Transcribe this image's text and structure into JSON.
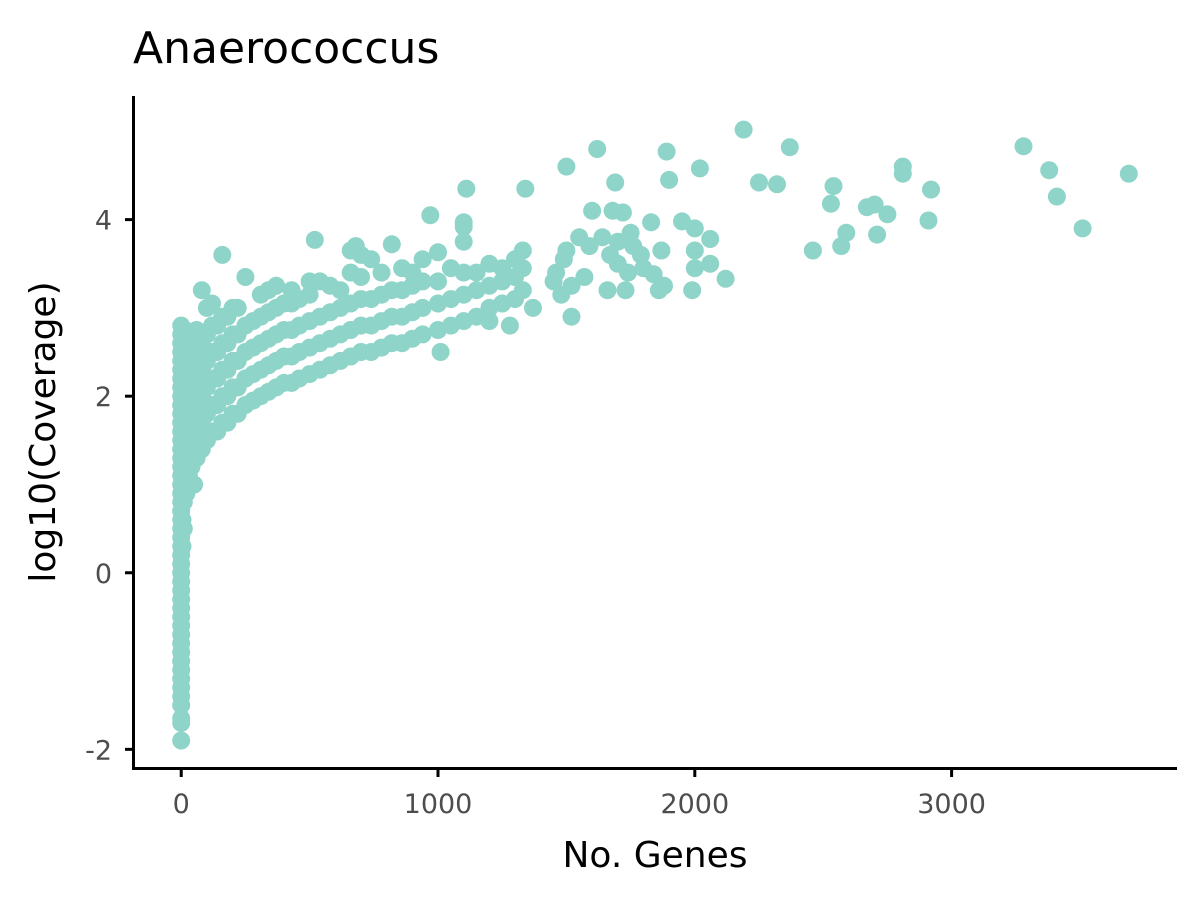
{
  "chart_data": {
    "type": "scatter",
    "title": "Anaerococcus",
    "xlabel": "No. Genes",
    "ylabel": "log10(Coverage)",
    "xlim": [
      -180,
      3870
    ],
    "ylim": [
      -2.2,
      5.4
    ],
    "x_ticks": [
      0,
      1000,
      2000,
      3000
    ],
    "x_tick_labels": [
      "0",
      "1000",
      "2000",
      "3000"
    ],
    "y_ticks": [
      -2,
      0,
      2,
      4
    ],
    "y_tick_labels": [
      "-2",
      "0",
      "2",
      "4"
    ],
    "grid": false,
    "legend": "none",
    "point_color": "#8fd4c8",
    "points": [
      [
        0,
        -1.9
      ],
      [
        0,
        -1.7
      ],
      [
        0,
        -1.65
      ],
      [
        0,
        -1.5
      ],
      [
        0,
        -1.4
      ],
      [
        0,
        -1.3
      ],
      [
        0,
        -1.2
      ],
      [
        0,
        -1.1
      ],
      [
        0,
        -1.0
      ],
      [
        0,
        -0.9
      ],
      [
        0,
        -0.8
      ],
      [
        0,
        -0.7
      ],
      [
        0,
        -0.6
      ],
      [
        0,
        -0.5
      ],
      [
        0,
        -0.4
      ],
      [
        0,
        -0.3
      ],
      [
        0,
        -0.2
      ],
      [
        0,
        -0.1
      ],
      [
        0,
        0.0
      ],
      [
        0,
        0.1
      ],
      [
        0,
        0.2
      ],
      [
        0,
        0.3
      ],
      [
        0,
        0.4
      ],
      [
        0,
        0.5
      ],
      [
        0,
        0.6
      ],
      [
        0,
        0.7
      ],
      [
        0,
        0.8
      ],
      [
        0,
        0.9
      ],
      [
        0,
        1.0
      ],
      [
        0,
        1.1
      ],
      [
        0,
        1.2
      ],
      [
        0,
        1.3
      ],
      [
        0,
        1.4
      ],
      [
        0,
        1.5
      ],
      [
        0,
        1.6
      ],
      [
        0,
        1.7
      ],
      [
        0,
        1.8
      ],
      [
        0,
        1.9
      ],
      [
        0,
        2.0
      ],
      [
        0,
        2.1
      ],
      [
        0,
        2.2
      ],
      [
        0,
        2.3
      ],
      [
        0,
        2.4
      ],
      [
        0,
        2.5
      ],
      [
        0,
        2.6
      ],
      [
        0,
        2.7
      ],
      [
        0,
        2.8
      ],
      [
        5,
        0.3
      ],
      [
        5,
        0.6
      ],
      [
        5,
        0.9
      ],
      [
        5,
        1.2
      ],
      [
        5,
        1.5
      ],
      [
        5,
        1.8
      ],
      [
        5,
        2.1
      ],
      [
        5,
        2.4
      ],
      [
        5,
        2.7
      ],
      [
        10,
        0.5
      ],
      [
        10,
        0.8
      ],
      [
        10,
        1.1
      ],
      [
        10,
        1.4
      ],
      [
        10,
        1.7
      ],
      [
        10,
        2.0
      ],
      [
        10,
        2.3
      ],
      [
        10,
        2.6
      ],
      [
        15,
        1.0
      ],
      [
        15,
        1.3
      ],
      [
        15,
        1.6
      ],
      [
        15,
        1.9
      ],
      [
        15,
        2.2
      ],
      [
        15,
        2.5
      ],
      [
        15,
        2.75
      ],
      [
        20,
        0.9
      ],
      [
        20,
        1.2
      ],
      [
        20,
        1.5
      ],
      [
        20,
        1.8
      ],
      [
        20,
        2.1
      ],
      [
        20,
        2.4
      ],
      [
        20,
        2.7
      ],
      [
        30,
        1.1
      ],
      [
        30,
        1.4
      ],
      [
        30,
        1.7
      ],
      [
        30,
        2.0
      ],
      [
        30,
        2.3
      ],
      [
        30,
        2.6
      ],
      [
        40,
        1.2
      ],
      [
        40,
        1.5
      ],
      [
        40,
        1.8
      ],
      [
        40,
        2.1
      ],
      [
        40,
        2.4
      ],
      [
        40,
        2.7
      ],
      [
        50,
        1.0
      ],
      [
        50,
        1.3
      ],
      [
        50,
        1.6
      ],
      [
        50,
        1.9
      ],
      [
        50,
        2.2
      ],
      [
        50,
        2.5
      ],
      [
        60,
        1.3
      ],
      [
        60,
        1.6
      ],
      [
        60,
        1.9
      ],
      [
        60,
        2.2
      ],
      [
        60,
        2.5
      ],
      [
        60,
        2.75
      ],
      [
        80,
        1.4
      ],
      [
        80,
        1.7
      ],
      [
        80,
        2.0
      ],
      [
        80,
        2.3
      ],
      [
        80,
        2.6
      ],
      [
        80,
        3.2
      ],
      [
        100,
        1.5
      ],
      [
        100,
        1.8
      ],
      [
        100,
        2.1
      ],
      [
        100,
        2.4
      ],
      [
        100,
        2.7
      ],
      [
        100,
        3.0
      ],
      [
        120,
        1.6
      ],
      [
        120,
        1.9
      ],
      [
        120,
        2.2
      ],
      [
        120,
        2.5
      ],
      [
        120,
        2.8
      ],
      [
        120,
        3.05
      ],
      [
        140,
        1.6
      ],
      [
        140,
        1.9
      ],
      [
        140,
        2.2
      ],
      [
        140,
        2.5
      ],
      [
        140,
        2.8
      ],
      [
        160,
        1.7
      ],
      [
        160,
        2.0
      ],
      [
        160,
        2.3
      ],
      [
        160,
        2.6
      ],
      [
        160,
        2.9
      ],
      [
        160,
        3.6
      ],
      [
        180,
        1.7
      ],
      [
        180,
        2.0
      ],
      [
        180,
        2.3
      ],
      [
        180,
        2.6
      ],
      [
        180,
        2.9
      ],
      [
        200,
        1.8
      ],
      [
        200,
        2.1
      ],
      [
        200,
        2.4
      ],
      [
        200,
        2.7
      ],
      [
        200,
        3.0
      ],
      [
        220,
        1.8
      ],
      [
        220,
        2.1
      ],
      [
        220,
        2.4
      ],
      [
        220,
        2.7
      ],
      [
        220,
        3.0
      ],
      [
        250,
        1.9
      ],
      [
        250,
        2.2
      ],
      [
        250,
        2.5
      ],
      [
        250,
        2.8
      ],
      [
        250,
        3.35
      ],
      [
        280,
        1.95
      ],
      [
        280,
        2.25
      ],
      [
        280,
        2.55
      ],
      [
        280,
        2.85
      ],
      [
        310,
        2.0
      ],
      [
        310,
        2.3
      ],
      [
        310,
        2.6
      ],
      [
        310,
        2.9
      ],
      [
        310,
        3.15
      ],
      [
        340,
        2.05
      ],
      [
        340,
        2.35
      ],
      [
        340,
        2.65
      ],
      [
        340,
        2.95
      ],
      [
        340,
        3.2
      ],
      [
        370,
        2.1
      ],
      [
        370,
        2.4
      ],
      [
        370,
        2.7
      ],
      [
        370,
        3.0
      ],
      [
        370,
        3.25
      ],
      [
        400,
        2.15
      ],
      [
        400,
        2.45
      ],
      [
        400,
        2.75
      ],
      [
        400,
        3.05
      ],
      [
        430,
        2.15
      ],
      [
        430,
        2.45
      ],
      [
        430,
        2.75
      ],
      [
        430,
        3.05
      ],
      [
        430,
        3.2
      ],
      [
        460,
        2.2
      ],
      [
        460,
        2.5
      ],
      [
        460,
        2.8
      ],
      [
        460,
        3.1
      ],
      [
        500,
        2.25
      ],
      [
        500,
        2.55
      ],
      [
        500,
        2.85
      ],
      [
        500,
        3.15
      ],
      [
        500,
        3.3
      ],
      [
        520,
        3.77
      ],
      [
        540,
        2.3
      ],
      [
        540,
        2.6
      ],
      [
        540,
        2.9
      ],
      [
        540,
        3.3
      ],
      [
        580,
        2.35
      ],
      [
        580,
        2.65
      ],
      [
        580,
        2.95
      ],
      [
        580,
        3.25
      ],
      [
        620,
        2.4
      ],
      [
        620,
        2.7
      ],
      [
        620,
        3.0
      ],
      [
        620,
        3.2
      ],
      [
        660,
        2.45
      ],
      [
        660,
        2.75
      ],
      [
        660,
        3.05
      ],
      [
        660,
        3.4
      ],
      [
        660,
        3.65
      ],
      [
        680,
        3.7
      ],
      [
        700,
        2.5
      ],
      [
        700,
        2.8
      ],
      [
        700,
        3.1
      ],
      [
        700,
        3.35
      ],
      [
        700,
        3.6
      ],
      [
        740,
        2.5
      ],
      [
        740,
        2.8
      ],
      [
        740,
        3.1
      ],
      [
        740,
        3.55
      ],
      [
        780,
        2.55
      ],
      [
        780,
        2.85
      ],
      [
        780,
        3.15
      ],
      [
        780,
        3.4
      ],
      [
        820,
        2.6
      ],
      [
        820,
        2.9
      ],
      [
        820,
        3.2
      ],
      [
        820,
        3.72
      ],
      [
        860,
        2.6
      ],
      [
        860,
        2.9
      ],
      [
        860,
        3.2
      ],
      [
        860,
        3.45
      ],
      [
        900,
        2.65
      ],
      [
        900,
        2.95
      ],
      [
        900,
        3.25
      ],
      [
        900,
        3.4
      ],
      [
        940,
        2.7
      ],
      [
        940,
        3.0
      ],
      [
        940,
        3.3
      ],
      [
        940,
        3.55
      ],
      [
        970,
        4.05
      ],
      [
        1000,
        2.75
      ],
      [
        1000,
        3.05
      ],
      [
        1000,
        3.3
      ],
      [
        1000,
        3.63
      ],
      [
        1010,
        2.5
      ],
      [
        1050,
        2.8
      ],
      [
        1050,
        3.1
      ],
      [
        1050,
        3.45
      ],
      [
        1100,
        2.85
      ],
      [
        1100,
        3.15
      ],
      [
        1100,
        3.4
      ],
      [
        1100,
        3.75
      ],
      [
        1100,
        3.97
      ],
      [
        1100,
        3.92
      ],
      [
        1110,
        4.35
      ],
      [
        1150,
        2.9
      ],
      [
        1150,
        3.2
      ],
      [
        1150,
        3.4
      ],
      [
        1200,
        3.0
      ],
      [
        1200,
        3.25
      ],
      [
        1200,
        3.5
      ],
      [
        1200,
        2.85
      ],
      [
        1250,
        3.05
      ],
      [
        1250,
        3.3
      ],
      [
        1250,
        3.45
      ],
      [
        1280,
        2.8
      ],
      [
        1300,
        3.1
      ],
      [
        1300,
        3.35
      ],
      [
        1300,
        3.55
      ],
      [
        1330,
        3.2
      ],
      [
        1330,
        3.45
      ],
      [
        1330,
        3.65
      ],
      [
        1340,
        4.35
      ],
      [
        1370,
        3.0
      ],
      [
        1450,
        3.3
      ],
      [
        1460,
        3.4
      ],
      [
        1480,
        3.15
      ],
      [
        1490,
        3.55
      ],
      [
        1500,
        3.65
      ],
      [
        1500,
        4.6
      ],
      [
        1520,
        2.9
      ],
      [
        1520,
        3.25
      ],
      [
        1550,
        3.8
      ],
      [
        1570,
        3.35
      ],
      [
        1590,
        3.7
      ],
      [
        1600,
        4.1
      ],
      [
        1620,
        4.8
      ],
      [
        1640,
        3.8
      ],
      [
        1660,
        3.2
      ],
      [
        1670,
        3.6
      ],
      [
        1680,
        4.1
      ],
      [
        1690,
        4.42
      ],
      [
        1700,
        3.5
      ],
      [
        1700,
        3.75
      ],
      [
        1720,
        4.08
      ],
      [
        1730,
        3.2
      ],
      [
        1740,
        3.4
      ],
      [
        1750,
        3.85
      ],
      [
        1760,
        3.7
      ],
      [
        1790,
        3.6
      ],
      [
        1800,
        3.45
      ],
      [
        1830,
        3.97
      ],
      [
        1840,
        3.38
      ],
      [
        1860,
        3.2
      ],
      [
        1870,
        3.65
      ],
      [
        1880,
        3.25
      ],
      [
        1890,
        4.77
      ],
      [
        1900,
        4.45
      ],
      [
        1950,
        3.98
      ],
      [
        1990,
        3.2
      ],
      [
        2000,
        3.45
      ],
      [
        2000,
        3.65
      ],
      [
        2000,
        3.9
      ],
      [
        2020,
        4.58
      ],
      [
        2060,
        3.5
      ],
      [
        2060,
        3.78
      ],
      [
        2120,
        3.33
      ],
      [
        2190,
        5.02
      ],
      [
        2250,
        4.42
      ],
      [
        2320,
        4.4
      ],
      [
        2370,
        4.82
      ],
      [
        2460,
        3.65
      ],
      [
        2530,
        4.18
      ],
      [
        2540,
        4.38
      ],
      [
        2570,
        3.7
      ],
      [
        2590,
        3.85
      ],
      [
        2670,
        4.14
      ],
      [
        2700,
        4.17
      ],
      [
        2710,
        3.83
      ],
      [
        2750,
        4.06
      ],
      [
        2810,
        4.52
      ],
      [
        2810,
        4.6
      ],
      [
        2910,
        3.99
      ],
      [
        2920,
        4.34
      ],
      [
        3280,
        4.83
      ],
      [
        3380,
        4.56
      ],
      [
        3410,
        4.26
      ],
      [
        3510,
        3.9
      ],
      [
        3690,
        4.52
      ]
    ]
  }
}
